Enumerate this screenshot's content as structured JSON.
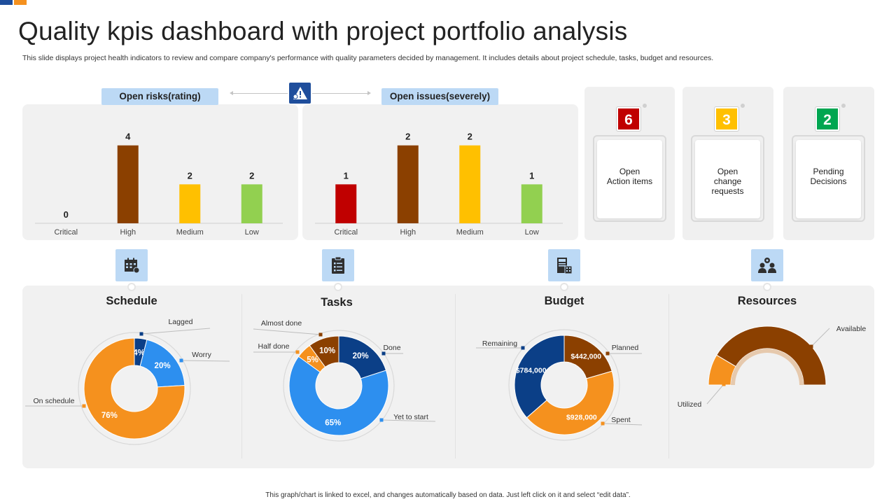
{
  "title": "Quality kpis dashboard with project portfolio analysis",
  "subtitle": "This slide displays project health indicators to review and compare company's performance with quality parameters decided by management. It includes details about project schedule, tasks, budget and resources.",
  "footer": "This graph/chart is linked to excel, and changes automatically based on data. Just left click on it and select “edit data”.",
  "colors": {
    "accent_blue": "#1f4e9c",
    "tag_blue": "#bcd9f5",
    "panel_gray": "#f1f1f1",
    "red": "#c00000",
    "brown": "#8b4000",
    "yellow": "#ffc000",
    "green": "#92d050",
    "navy": "#0b3f87",
    "blue": "#2d8fef",
    "orange": "#f5911e",
    "kpi_green": "#00a651"
  },
  "icons": {
    "center": "warning-icon",
    "schedule": "calendar-icon",
    "tasks": "clipboard-checklist-icon",
    "budget": "cash-register-icon",
    "resources": "team-gear-icon"
  },
  "risks": {
    "tag": "Open risks(rating)"
  },
  "issues": {
    "tag": "Open issues(severely)"
  },
  "kpis": [
    {
      "value": "6",
      "label_lines": [
        "Open",
        "Action items"
      ],
      "color": "#c00000"
    },
    {
      "value": "3",
      "label_lines": [
        "Open",
        "change",
        "requests"
      ],
      "color": "#ffc000"
    },
    {
      "value": "2",
      "label_lines": [
        "Pending",
        "Decisions"
      ],
      "color": "#00a651"
    }
  ],
  "sections": {
    "schedule": "Schedule",
    "tasks": "Tasks",
    "budget": "Budget",
    "resources": "Resources"
  },
  "chart_data": [
    {
      "id": "risks",
      "type": "bar",
      "title": "Open risks(rating)",
      "categories": [
        "Critical",
        "High",
        "Medium",
        "Low"
      ],
      "values": [
        0,
        4,
        2,
        2
      ],
      "colors": [
        "#c00000",
        "#8b4000",
        "#ffc000",
        "#92d050"
      ],
      "ylim": [
        0,
        4.6
      ]
    },
    {
      "id": "issues",
      "type": "bar",
      "title": "Open issues(severely)",
      "categories": [
        "Critical",
        "High",
        "Medium",
        "Low"
      ],
      "values": [
        1,
        2,
        2,
        1
      ],
      "colors": [
        "#c00000",
        "#8b4000",
        "#ffc000",
        "#92d050"
      ],
      "ylim": [
        0,
        2.3
      ]
    },
    {
      "id": "schedule",
      "type": "pie",
      "title": "Schedule",
      "slices": [
        {
          "name": "Lagged",
          "value": 4,
          "label": "4%",
          "color": "#0b3f87"
        },
        {
          "name": "Worry",
          "value": 20,
          "label": "20%",
          "color": "#2d8fef"
        },
        {
          "name": "On schedule",
          "value": 76,
          "label": "76%",
          "color": "#f5911e"
        }
      ]
    },
    {
      "id": "tasks",
      "type": "pie",
      "title": "Tasks",
      "slices": [
        {
          "name": "Done",
          "value": 20,
          "label": "20%",
          "color": "#0b3f87"
        },
        {
          "name": "Yet to start",
          "value": 65,
          "label": "65%",
          "color": "#2d8fef"
        },
        {
          "name": "Half done",
          "value": 5,
          "label": "5%",
          "color": "#f5911e"
        },
        {
          "name": "Almost done",
          "value": 10,
          "label": "10%",
          "color": "#8b4000"
        }
      ]
    },
    {
      "id": "budget",
      "type": "pie",
      "title": "Budget",
      "slices": [
        {
          "name": "Planned",
          "value": 442000,
          "label": "$442,000",
          "color": "#8b4000"
        },
        {
          "name": "Spent",
          "value": 928000,
          "label": "$928,000",
          "color": "#f5911e"
        },
        {
          "name": "Remaining",
          "value": 784000,
          "label": "$784,000",
          "color": "#0b3f87"
        }
      ]
    },
    {
      "id": "resources",
      "type": "pie",
      "title": "Resources",
      "semicircle": true,
      "slices": [
        {
          "name": "Utilized",
          "value": 17,
          "color": "#f5911e"
        },
        {
          "name": "Available",
          "value": 83,
          "color": "#8b4000"
        }
      ]
    }
  ]
}
